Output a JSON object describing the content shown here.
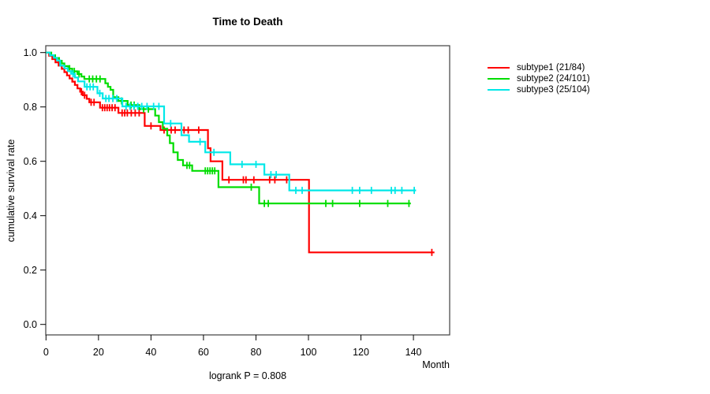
{
  "chart_data": {
    "type": "line",
    "subtype": "kaplan-meier-step-survival",
    "title": "Time to Death",
    "xlabel": "Month",
    "ylabel": "cumulative survival rate",
    "annotation": "logrank P = 0.808",
    "grid": false,
    "legend_position": "right-outside",
    "xlim": [
      0,
      153
    ],
    "ylim": [
      0.0,
      1.04
    ],
    "x_ticks": [
      0,
      20,
      40,
      60,
      80,
      100,
      120,
      140
    ],
    "y_ticks": [
      1.0,
      0.8,
      0.6,
      0.4,
      0.2,
      0.0
    ],
    "series": [
      {
        "id": "subtype1",
        "name": "subtype1 (21/84)",
        "color": "#FF0000",
        "end": 148,
        "steps": [
          [
            0,
            1.0
          ],
          [
            1.2,
            0.988
          ],
          [
            2.4,
            0.976
          ],
          [
            3.6,
            0.964
          ],
          [
            4.8,
            0.952
          ],
          [
            6,
            0.94
          ],
          [
            7,
            0.928
          ],
          [
            8,
            0.916
          ],
          [
            9,
            0.905
          ],
          [
            10,
            0.893
          ],
          [
            11,
            0.881
          ],
          [
            12,
            0.868
          ],
          [
            13,
            0.856
          ],
          [
            14,
            0.843
          ],
          [
            15.5,
            0.83
          ],
          [
            16.5,
            0.817
          ],
          [
            20.6,
            0.797
          ],
          [
            27.6,
            0.778
          ],
          [
            37.6,
            0.73
          ],
          [
            43.6,
            0.715
          ],
          [
            61.7,
            0.648
          ],
          [
            62.7,
            0.6
          ],
          [
            67.2,
            0.532
          ],
          [
            100.2,
            0.265
          ]
        ],
        "censors": [
          [
            13.5,
            0.856
          ],
          [
            14.7,
            0.843
          ],
          [
            17.2,
            0.817
          ],
          [
            18.3,
            0.817
          ],
          [
            21.5,
            0.797
          ],
          [
            22.4,
            0.797
          ],
          [
            23.3,
            0.797
          ],
          [
            24.2,
            0.797
          ],
          [
            25.2,
            0.797
          ],
          [
            26.3,
            0.797
          ],
          [
            29,
            0.778
          ],
          [
            30,
            0.778
          ],
          [
            31,
            0.778
          ],
          [
            32.5,
            0.778
          ],
          [
            34,
            0.778
          ],
          [
            35.5,
            0.778
          ],
          [
            40,
            0.73
          ],
          [
            45,
            0.715
          ],
          [
            47.7,
            0.715
          ],
          [
            49.2,
            0.715
          ],
          [
            52.6,
            0.715
          ],
          [
            54.2,
            0.715
          ],
          [
            58.2,
            0.715
          ],
          [
            69.7,
            0.532
          ],
          [
            75.2,
            0.532
          ],
          [
            76.2,
            0.532
          ],
          [
            79.2,
            0.532
          ],
          [
            85.2,
            0.532
          ],
          [
            87.2,
            0.532
          ],
          [
            91.7,
            0.532
          ],
          [
            147,
            0.265
          ]
        ]
      },
      {
        "id": "subtype2",
        "name": "subtype2 (24/101)",
        "color": "#00DD00",
        "end": 139,
        "steps": [
          [
            0,
            1.0
          ],
          [
            2,
            0.99
          ],
          [
            3.5,
            0.98
          ],
          [
            5,
            0.97
          ],
          [
            6,
            0.96
          ],
          [
            7,
            0.95
          ],
          [
            8.5,
            0.941
          ],
          [
            10,
            0.931
          ],
          [
            12,
            0.921
          ],
          [
            13.5,
            0.912
          ],
          [
            14.6,
            0.903
          ],
          [
            22.6,
            0.887
          ],
          [
            23.6,
            0.874
          ],
          [
            24.6,
            0.863
          ],
          [
            25.6,
            0.836
          ],
          [
            27.6,
            0.822
          ],
          [
            31.1,
            0.807
          ],
          [
            35.6,
            0.792
          ],
          [
            41.6,
            0.768
          ],
          [
            43,
            0.744
          ],
          [
            44.5,
            0.72
          ],
          [
            46.2,
            0.695
          ],
          [
            47.2,
            0.667
          ],
          [
            48.5,
            0.633
          ],
          [
            50.2,
            0.605
          ],
          [
            52.2,
            0.585
          ],
          [
            55.7,
            0.565
          ],
          [
            65.7,
            0.505
          ],
          [
            81.2,
            0.445
          ]
        ],
        "censors": [
          [
            9,
            0.941
          ],
          [
            10.8,
            0.931
          ],
          [
            12.6,
            0.921
          ],
          [
            16.5,
            0.903
          ],
          [
            17.8,
            0.903
          ],
          [
            19.2,
            0.903
          ],
          [
            20.6,
            0.903
          ],
          [
            28.8,
            0.822
          ],
          [
            32.4,
            0.807
          ],
          [
            33.6,
            0.807
          ],
          [
            37.2,
            0.792
          ],
          [
            39,
            0.792
          ],
          [
            53.7,
            0.585
          ],
          [
            54.7,
            0.585
          ],
          [
            60.7,
            0.565
          ],
          [
            61.6,
            0.565
          ],
          [
            62.5,
            0.565
          ],
          [
            63.4,
            0.565
          ],
          [
            64.3,
            0.565
          ],
          [
            78.2,
            0.505
          ],
          [
            83.2,
            0.445
          ],
          [
            84.7,
            0.445
          ],
          [
            106.6,
            0.445
          ],
          [
            109.2,
            0.445
          ],
          [
            119.5,
            0.445
          ],
          [
            130.2,
            0.445
          ],
          [
            138.3,
            0.445
          ]
        ]
      },
      {
        "id": "subtype3",
        "name": "subtype3 (25/104)",
        "color": "#00E8E8",
        "end": 141,
        "steps": [
          [
            0,
            1.0
          ],
          [
            1.5,
            0.99
          ],
          [
            3,
            0.981
          ],
          [
            4.2,
            0.971
          ],
          [
            5.4,
            0.952
          ],
          [
            7,
            0.942
          ],
          [
            8.3,
            0.932
          ],
          [
            9.6,
            0.922
          ],
          [
            11,
            0.908
          ],
          [
            12.2,
            0.894
          ],
          [
            14.7,
            0.874
          ],
          [
            19.6,
            0.85
          ],
          [
            21.6,
            0.831
          ],
          [
            29.1,
            0.802
          ],
          [
            45,
            0.739
          ],
          [
            51.6,
            0.696
          ],
          [
            54.5,
            0.672
          ],
          [
            60.7,
            0.633
          ],
          [
            70.2,
            0.589
          ],
          [
            83.2,
            0.551
          ],
          [
            92.7,
            0.493
          ]
        ],
        "censors": [
          [
            10.3,
            0.922
          ],
          [
            15.6,
            0.874
          ],
          [
            16.8,
            0.874
          ],
          [
            18,
            0.874
          ],
          [
            20.5,
            0.85
          ],
          [
            22.8,
            0.831
          ],
          [
            24,
            0.831
          ],
          [
            25.5,
            0.831
          ],
          [
            27,
            0.831
          ],
          [
            30.5,
            0.802
          ],
          [
            32,
            0.802
          ],
          [
            33.5,
            0.802
          ],
          [
            35,
            0.802
          ],
          [
            36.5,
            0.802
          ],
          [
            38.5,
            0.802
          ],
          [
            41,
            0.802
          ],
          [
            43,
            0.802
          ],
          [
            47.5,
            0.739
          ],
          [
            58.7,
            0.672
          ],
          [
            64,
            0.633
          ],
          [
            74.7,
            0.589
          ],
          [
            80,
            0.589
          ],
          [
            85.7,
            0.551
          ],
          [
            87.7,
            0.551
          ],
          [
            95.2,
            0.493
          ],
          [
            97.6,
            0.493
          ],
          [
            116.7,
            0.493
          ],
          [
            119.5,
            0.493
          ],
          [
            124,
            0.493
          ],
          [
            131.6,
            0.493
          ],
          [
            133,
            0.493
          ],
          [
            135.6,
            0.493
          ],
          [
            140.3,
            0.493
          ]
        ]
      }
    ]
  }
}
